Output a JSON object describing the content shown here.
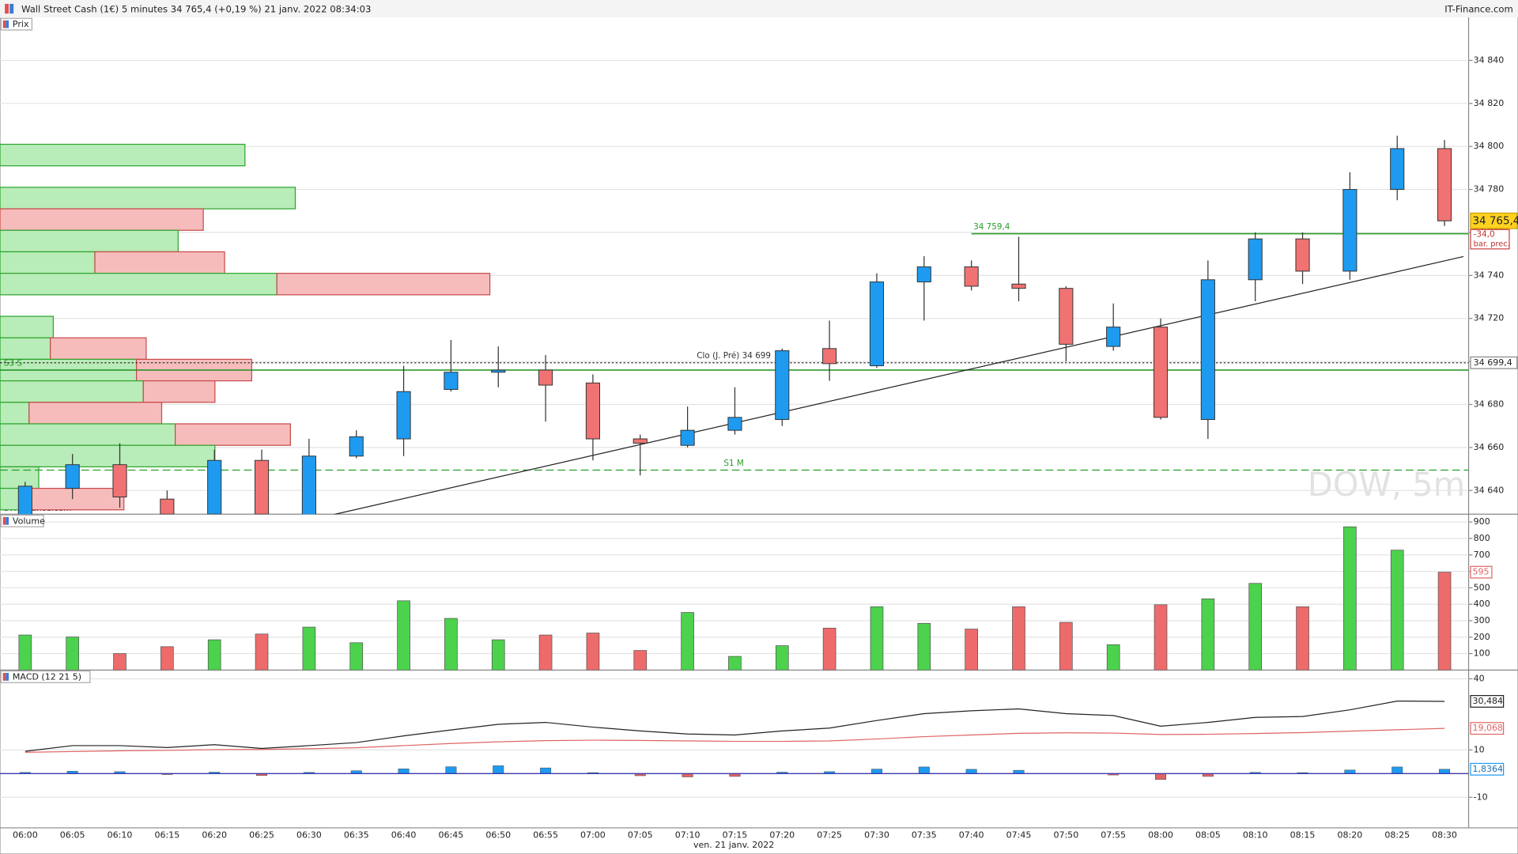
{
  "header": {
    "title": "Wall Street Cash (1€) 5 minutes 34 765,4 (+0,19 %) 21 janv. 2022 08:34:03",
    "brand": "IT-Finance.com"
  },
  "chart_data": [
    {
      "type": "candlestick",
      "title": "Prix",
      "watermark": "DOW, 5m",
      "credit": "©IT-Finance.com",
      "categories": [
        "06:00",
        "06:05",
        "06:10",
        "06:15",
        "06:20",
        "06:25",
        "06:30",
        "06:35",
        "06:40",
        "06:45",
        "06:50",
        "06:55",
        "07:00",
        "07:05",
        "07:10",
        "07:15",
        "07:20",
        "07:25",
        "07:30",
        "07:35",
        "07:40",
        "07:45",
        "07:50",
        "07:55",
        "08:00",
        "08:05",
        "08:10",
        "08:15",
        "08:20",
        "08:25",
        "08:30"
      ],
      "open": [
        34625,
        34641,
        34652,
        34636,
        34629,
        34654,
        34628,
        34656,
        34664,
        34687,
        34695,
        34696,
        34690,
        34664,
        34661,
        34668,
        34673,
        34706,
        34698,
        34737,
        34744,
        34736,
        34734,
        34707,
        34716,
        34673,
        34738,
        34757,
        34742,
        34780,
        34799
      ],
      "high": [
        34644,
        34657,
        34662,
        34640,
        34659,
        34659,
        34664,
        34668,
        34698,
        34710,
        34707,
        34703,
        34694,
        34666,
        34679,
        34688,
        34706,
        34719,
        34741,
        34749,
        34747,
        34758,
        34735,
        34727,
        34720,
        34747,
        34760,
        34760,
        34788,
        34805,
        34803
      ],
      "low": [
        34618,
        34636,
        34632,
        34626,
        34626,
        34625,
        34624,
        34655,
        34656,
        34686,
        34688,
        34672,
        34654,
        34647,
        34660,
        34666,
        34670,
        34691,
        34697,
        34719,
        34733,
        34728,
        34700,
        34705,
        34673,
        34664,
        34728,
        34736,
        34738,
        34775,
        34763
      ],
      "close": [
        34642,
        34652,
        34637,
        34629,
        34654,
        34629,
        34656,
        34665,
        34686,
        34695,
        34696,
        34689,
        34664,
        34662,
        34668,
        34674,
        34705,
        34699,
        34737,
        34744,
        34735,
        34734,
        34708,
        34716,
        34674,
        34738,
        34757,
        34742,
        34780,
        34799,
        34765.4
      ],
      "up_color": "#1e9bf0",
      "down_color": "#f07272",
      "ylim": [
        34629,
        34860
      ],
      "yticks": [
        {
          "value": 34640,
          "label": "34 640"
        },
        {
          "value": 34660,
          "label": "34 660"
        },
        {
          "value": 34680,
          "label": "34 680"
        },
        {
          "value": 34700,
          "label": "34 700"
        },
        {
          "value": 34720,
          "label": "34 720"
        },
        {
          "value": 34740,
          "label": "34 740"
        },
        {
          "value": 34760,
          "label": "34 760"
        },
        {
          "value": 34780,
          "label": "34 780"
        },
        {
          "value": 34800,
          "label": "34 800"
        },
        {
          "value": 34820,
          "label": "34 820"
        },
        {
          "value": 34840,
          "label": "34 840"
        }
      ],
      "grid": true,
      "levels": [
        {
          "label": "34 759,4",
          "value": 34759.4,
          "color": "#2a9d2a",
          "style": "solid",
          "start": "07:40",
          "align": "start"
        },
        {
          "label": "Clo (J. Pré) 34 699",
          "value": 34699.4,
          "axis_label": "34 699,4",
          "color": "#333333",
          "style": "dotted",
          "align": "center"
        },
        {
          "label": "S3 S",
          "value": 34696,
          "color": "#1f8f1f",
          "style": "solid",
          "align": "left"
        },
        {
          "label": "S1 M",
          "value": 34649.5,
          "color": "#2a9d2a",
          "style": "dashed",
          "align": "center"
        }
      ],
      "last": {
        "value": 34765.4,
        "label": "34 765,4",
        "change": -34.0,
        "change_label": "-34,0",
        "note": "bar. prec."
      },
      "trendline": {
        "x": [
          6.5,
          30.4
        ],
        "y": [
          34628.7,
          34748.8
        ]
      },
      "profile": {
        "bin": 10,
        "levels": [
          34796,
          34776,
          34766,
          34756,
          34746,
          34736,
          34716,
          34706,
          34696,
          34686,
          34676,
          34666,
          34656,
          34646,
          34636
        ],
        "buy": [
          253,
          305,
          0,
          184,
          98,
          286,
          55,
          52,
          141,
          148,
          30,
          181,
          222,
          40,
          30
        ],
        "sell": [
          0,
          0,
          210,
          0,
          134,
          220,
          0,
          99,
          119,
          74,
          137,
          119,
          0,
          0,
          98
        ],
        "buy_color": "#b8ecb8",
        "sell_color": "#f6bcbc"
      }
    },
    {
      "type": "bar",
      "title": "Volume",
      "values": [
        213,
        201,
        100,
        142,
        184,
        219,
        261,
        166,
        421,
        314,
        184,
        213,
        225,
        119,
        350,
        83,
        148,
        255,
        385,
        284,
        249,
        385,
        290,
        154,
        397,
        433,
        527,
        385,
        871,
        729,
        595
      ],
      "colors": [
        "#4cd24c",
        "#4cd24c",
        "#ee6b6b",
        "#ee6b6b",
        "#4cd24c",
        "#ee6b6b",
        "#4cd24c",
        "#4cd24c",
        "#4cd24c",
        "#4cd24c",
        "#4cd24c",
        "#ee6b6b",
        "#ee6b6b",
        "#ee6b6b",
        "#4cd24c",
        "#4cd24c",
        "#4cd24c",
        "#ee6b6b",
        "#4cd24c",
        "#4cd24c",
        "#ee6b6b",
        "#ee6b6b",
        "#ee6b6b",
        "#4cd24c",
        "#ee6b6b",
        "#4cd24c",
        "#4cd24c",
        "#ee6b6b",
        "#4cd24c",
        "#4cd24c",
        "#ee6b6b"
      ],
      "ylim": [
        0,
        948
      ],
      "yticks": [
        100,
        200,
        300,
        400,
        500,
        600,
        700,
        800,
        900
      ],
      "grid": true
    },
    {
      "type": "line",
      "title": "MACD (12 21 5)",
      "xlabel": "ven. 21 janv. 2022",
      "series": [
        {
          "color": "#222222",
          "values": [
            9.4,
            11.8,
            11.8,
            11,
            12.2,
            10.6,
            11.8,
            13.1,
            15.9,
            18.4,
            20.8,
            21.6,
            19.6,
            18,
            16.7,
            16.3,
            18,
            19.2,
            22.4,
            25.3,
            26.5,
            27.3,
            25.3,
            24.5,
            20,
            21.6,
            23.7,
            24.1,
            26.9,
            30.6,
            30.484
          ],
          "last_label": "30,484"
        },
        {
          "color": "#e06464",
          "values": [
            9.0,
            9.3,
            9.6,
            9.8,
            10.1,
            10.2,
            10.5,
            10.9,
            11.8,
            12.7,
            13.4,
            13.9,
            14.1,
            14.0,
            13.8,
            13.6,
            13.6,
            13.8,
            14.6,
            15.6,
            16.3,
            17.0,
            17.2,
            17.1,
            16.5,
            16.6,
            16.9,
            17.3,
            17.9,
            18.5,
            19.068
          ],
          "last_label": "19,068"
        }
      ],
      "histogram": {
        "values": [
          0.5,
          1,
          0.8,
          -0.4,
          0.6,
          -0.8,
          0.5,
          1.2,
          2,
          2.9,
          3.3,
          2.4,
          0.4,
          -0.9,
          -1.4,
          -1.2,
          0.6,
          0.8,
          1.9,
          2.8,
          1.8,
          1.4,
          -0.1,
          -0.6,
          -2.5,
          -1.2,
          0.5,
          0.4,
          1.5,
          2.8,
          1.8364
        ],
        "last_label": "1,8364",
        "up_color": "#1e9bf0",
        "down_color": "#e06464"
      },
      "zero_color": "#3a3ab0",
      "ylim": [
        -22.9,
        43.7
      ],
      "yticks": [
        -10,
        10,
        40
      ],
      "grid": true
    }
  ]
}
